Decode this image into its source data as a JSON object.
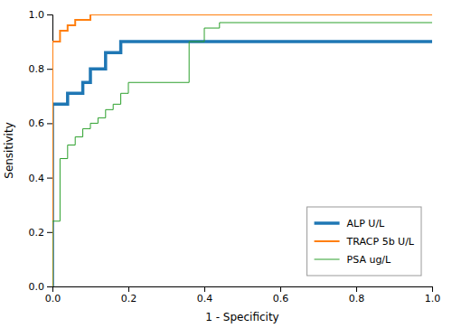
{
  "chart_data": {
    "type": "line",
    "xlabel": "1 - Specificity",
    "ylabel": "Sensitivity",
    "xlim": [
      0.0,
      1.0
    ],
    "ylim": [
      0.0,
      1.0
    ],
    "xticks": [
      {
        "value": 0,
        "label": "0.0"
      },
      0.2,
      0.4,
      0.6,
      0.8,
      {
        "value": 1,
        "label": "1.0"
      }
    ],
    "yticks": [
      {
        "value": 0,
        "label": "0.0"
      },
      0.2,
      0.4,
      0.6,
      0.8,
      {
        "value": 1,
        "label": "1.0"
      }
    ],
    "legend": "lower right",
    "series": [
      {
        "name": "ALP U/L",
        "x": [
          0.0,
          0.0,
          0.04,
          0.04,
          0.08,
          0.08,
          0.1,
          0.1,
          0.14,
          0.14,
          0.18,
          0.18,
          0.4,
          0.4,
          0.44,
          0.44,
          0.6,
          0.6,
          0.84,
          0.84,
          1.0
        ],
        "values": [
          0.0,
          0.67,
          0.67,
          0.71,
          0.71,
          0.75,
          0.75,
          0.8,
          0.8,
          0.86,
          0.86,
          0.9,
          0.9,
          0.9,
          0.9,
          0.9,
          0.9,
          0.9,
          0.9,
          0.9,
          0.9
        ]
      },
      {
        "name": "TRACP 5b U/L",
        "x": [
          0.0,
          0.0,
          0.02,
          0.02,
          0.04,
          0.04,
          0.06,
          0.06,
          0.1,
          0.1,
          0.14,
          0.14,
          0.4,
          0.4,
          0.44,
          0.44,
          0.48,
          0.48,
          0.88,
          0.88,
          1.0
        ],
        "values": [
          0.0,
          0.9,
          0.9,
          0.94,
          0.94,
          0.96,
          0.96,
          0.98,
          0.98,
          1.0,
          1.0,
          1.0,
          1.0,
          1.0,
          1.0,
          1.0,
          1.0,
          1.0,
          1.0,
          1.0,
          1.0
        ]
      },
      {
        "name": "PSA ug/L",
        "x": [
          0.0,
          0.0,
          0.02,
          0.02,
          0.04,
          0.04,
          0.06,
          0.06,
          0.08,
          0.08,
          0.1,
          0.1,
          0.12,
          0.12,
          0.14,
          0.14,
          0.16,
          0.16,
          0.18,
          0.18,
          0.2,
          0.2,
          0.36,
          0.36,
          0.4,
          0.4,
          0.44,
          0.44,
          1.0
        ],
        "values": [
          0.0,
          0.24,
          0.24,
          0.47,
          0.47,
          0.52,
          0.52,
          0.55,
          0.55,
          0.58,
          0.58,
          0.6,
          0.6,
          0.62,
          0.62,
          0.65,
          0.65,
          0.67,
          0.67,
          0.71,
          0.71,
          0.75,
          0.75,
          0.9,
          0.9,
          0.95,
          0.95,
          0.97,
          0.97
        ]
      }
    ]
  }
}
